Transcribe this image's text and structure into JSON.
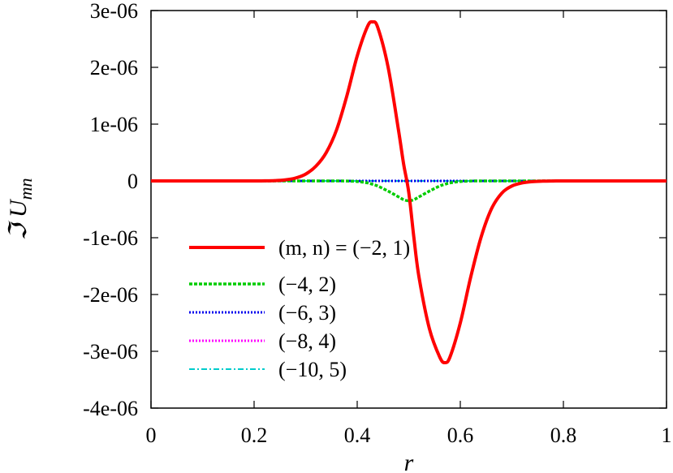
{
  "chart_data": {
    "type": "line",
    "title": "",
    "xlabel": "r",
    "ylabel": "ℑ U_mn",
    "ylabel_main": "ℑ U",
    "ylabel_sub": "mn",
    "xlim": [
      0,
      1
    ],
    "ylim": [
      -4e-06,
      3e-06
    ],
    "grid": false,
    "legend_position": "bottom-left",
    "x_ticks": [
      0,
      0.2,
      0.4,
      0.6,
      0.8,
      1
    ],
    "x_tick_labels": [
      "0",
      "0.2",
      "0.4",
      "0.6",
      "0.8",
      "1"
    ],
    "y_ticks": [
      3e-06,
      2e-06,
      1e-06,
      0,
      -1e-06,
      -2e-06,
      -3e-06,
      -4e-06
    ],
    "y_tick_labels": [
      "3e-06",
      "2e-06",
      "1e-06",
      "0",
      "-1e-06",
      "-2e-06",
      "-3e-06",
      "-4e-06"
    ],
    "x": [
      0,
      0.05,
      0.1,
      0.15,
      0.2,
      0.22,
      0.24,
      0.26,
      0.28,
      0.3,
      0.32,
      0.34,
      0.36,
      0.38,
      0.4,
      0.42,
      0.43,
      0.44,
      0.46,
      0.48,
      0.49,
      0.5,
      0.51,
      0.52,
      0.54,
      0.56,
      0.57,
      0.58,
      0.6,
      0.62,
      0.64,
      0.66,
      0.68,
      0.7,
      0.72,
      0.74,
      0.76,
      0.78,
      0.8,
      0.85,
      0.9,
      0.95,
      1
    ],
    "series": [
      {
        "name": "(m, n) = (−2, 1)",
        "color": "#ff0000",
        "style": "solid",
        "values": [
          0,
          0,
          0,
          0,
          0.0,
          1e-09,
          5e-09,
          1.8e-08,
          5e-08,
          1.2e-07,
          2.6e-07,
          5e-07,
          9e-07,
          1.5e-06,
          2.2e-06,
          2.72e-06,
          2.8e-06,
          2.7e-06,
          2e-06,
          9e-07,
          3e-07,
          -2e-07,
          -1e-06,
          -1.7e-06,
          -2.6e-06,
          -3.1e-06,
          -3.2e-06,
          -3.1e-06,
          -2.5e-06,
          -1.7e-06,
          -1e-06,
          -5e-07,
          -2.2e-07,
          -9e-08,
          -3.5e-08,
          -1.2e-08,
          -4e-09,
          -1e-09,
          0,
          0,
          0,
          0,
          0
        ]
      },
      {
        "name": "(−4, 2)",
        "color": "#00cc00",
        "style": "dashed",
        "values": [
          0,
          0,
          0,
          0,
          0,
          0,
          0,
          0,
          0,
          0,
          0,
          0,
          0,
          -2e-09,
          -1e-08,
          -3.5e-08,
          -6e-08,
          -9e-08,
          -1.8e-07,
          -2.8e-07,
          -3.3e-07,
          -3.5e-07,
          -3.3e-07,
          -2.8e-07,
          -1.8e-07,
          -9e-08,
          -6e-08,
          -3.5e-08,
          -1e-08,
          -2e-09,
          0,
          0,
          0,
          0,
          0,
          0,
          0,
          0,
          0,
          0,
          0,
          0,
          0
        ]
      },
      {
        "name": "(−6, 3)",
        "color": "#0000ee",
        "style": "dotted",
        "values": [
          0,
          0,
          0,
          0,
          0,
          0,
          0,
          0,
          0,
          0,
          0,
          0,
          0,
          0,
          0,
          0,
          0,
          0,
          0,
          0,
          0,
          0,
          0,
          0,
          0,
          0,
          0,
          0,
          0,
          0,
          0,
          0,
          0,
          0,
          0,
          0,
          0,
          0,
          0,
          0,
          0,
          0,
          0
        ]
      },
      {
        "name": "(−8, 4)",
        "color": "#ff00ff",
        "style": "dotted",
        "values": [
          0,
          0,
          0,
          0,
          0,
          0,
          0,
          0,
          0,
          0,
          0,
          0,
          0,
          0,
          0,
          0,
          0,
          0,
          0,
          0,
          0,
          0,
          0,
          0,
          0,
          0,
          0,
          0,
          0,
          0,
          0,
          0,
          0,
          0,
          0,
          0,
          0,
          0,
          0,
          0,
          0,
          0,
          0
        ]
      },
      {
        "name": "(−10, 5)",
        "color": "#00cccc",
        "style": "dashdot",
        "values": [
          0,
          0,
          0,
          0,
          0,
          0,
          0,
          0,
          0,
          0,
          0,
          0,
          0,
          0,
          0,
          0,
          0,
          0,
          0,
          0,
          0,
          0,
          0,
          0,
          0,
          0,
          0,
          0,
          0,
          0,
          0,
          0,
          0,
          0,
          0,
          0,
          0,
          0,
          0,
          0,
          0,
          0,
          0
        ]
      }
    ]
  }
}
